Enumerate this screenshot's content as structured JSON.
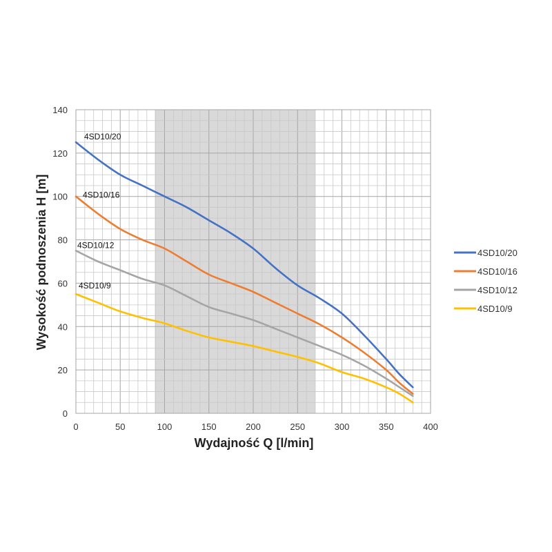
{
  "chart_data": {
    "type": "line",
    "title": "",
    "xlabel": "Wydajność Q [l/min]",
    "ylabel": "Wysokość podnoszenia H [m]",
    "xlim": [
      0,
      400
    ],
    "ylim": [
      0,
      140
    ],
    "x_ticks": [
      0,
      50,
      100,
      150,
      200,
      250,
      300,
      350,
      400
    ],
    "y_ticks": [
      0,
      20,
      40,
      60,
      80,
      100,
      120,
      140
    ],
    "grid": true,
    "minor_grid": true,
    "highlight_band": [
      89,
      270
    ],
    "legend_position": "right",
    "series": [
      {
        "name": "4SD10/20",
        "color": "#4472C4",
        "x": [
          0,
          25,
          50,
          75,
          100,
          125,
          150,
          175,
          200,
          225,
          250,
          275,
          300,
          325,
          350,
          365,
          380
        ],
        "y": [
          125,
          117,
          110,
          105,
          100,
          95,
          89,
          83,
          76,
          67,
          59,
          53,
          46,
          36,
          25,
          18,
          12
        ]
      },
      {
        "name": "4SD10/16",
        "color": "#ED7D31",
        "x": [
          0,
          25,
          50,
          75,
          100,
          125,
          150,
          175,
          200,
          225,
          250,
          275,
          300,
          325,
          350,
          365,
          380
        ],
        "y": [
          100,
          92,
          85,
          80,
          76,
          70,
          64,
          60,
          56,
          51,
          46,
          41,
          35,
          28,
          20,
          14,
          9
        ]
      },
      {
        "name": "4SD10/12",
        "color": "#A5A5A5",
        "x": [
          0,
          25,
          50,
          75,
          100,
          125,
          150,
          175,
          200,
          225,
          250,
          275,
          300,
          325,
          350,
          365,
          380
        ],
        "y": [
          75,
          70,
          66,
          62,
          59,
          54,
          49,
          46,
          43,
          39,
          35,
          31,
          27,
          22,
          16,
          12,
          8
        ]
      },
      {
        "name": "4SD10/9",
        "color": "#FFC000",
        "x": [
          0,
          25,
          50,
          75,
          100,
          125,
          150,
          175,
          200,
          225,
          250,
          275,
          300,
          325,
          350,
          365,
          380
        ],
        "y": [
          55,
          51,
          47,
          44,
          41.5,
          38,
          35,
          33,
          31,
          28.5,
          26,
          23,
          19,
          16,
          12,
          9,
          5
        ]
      }
    ]
  }
}
